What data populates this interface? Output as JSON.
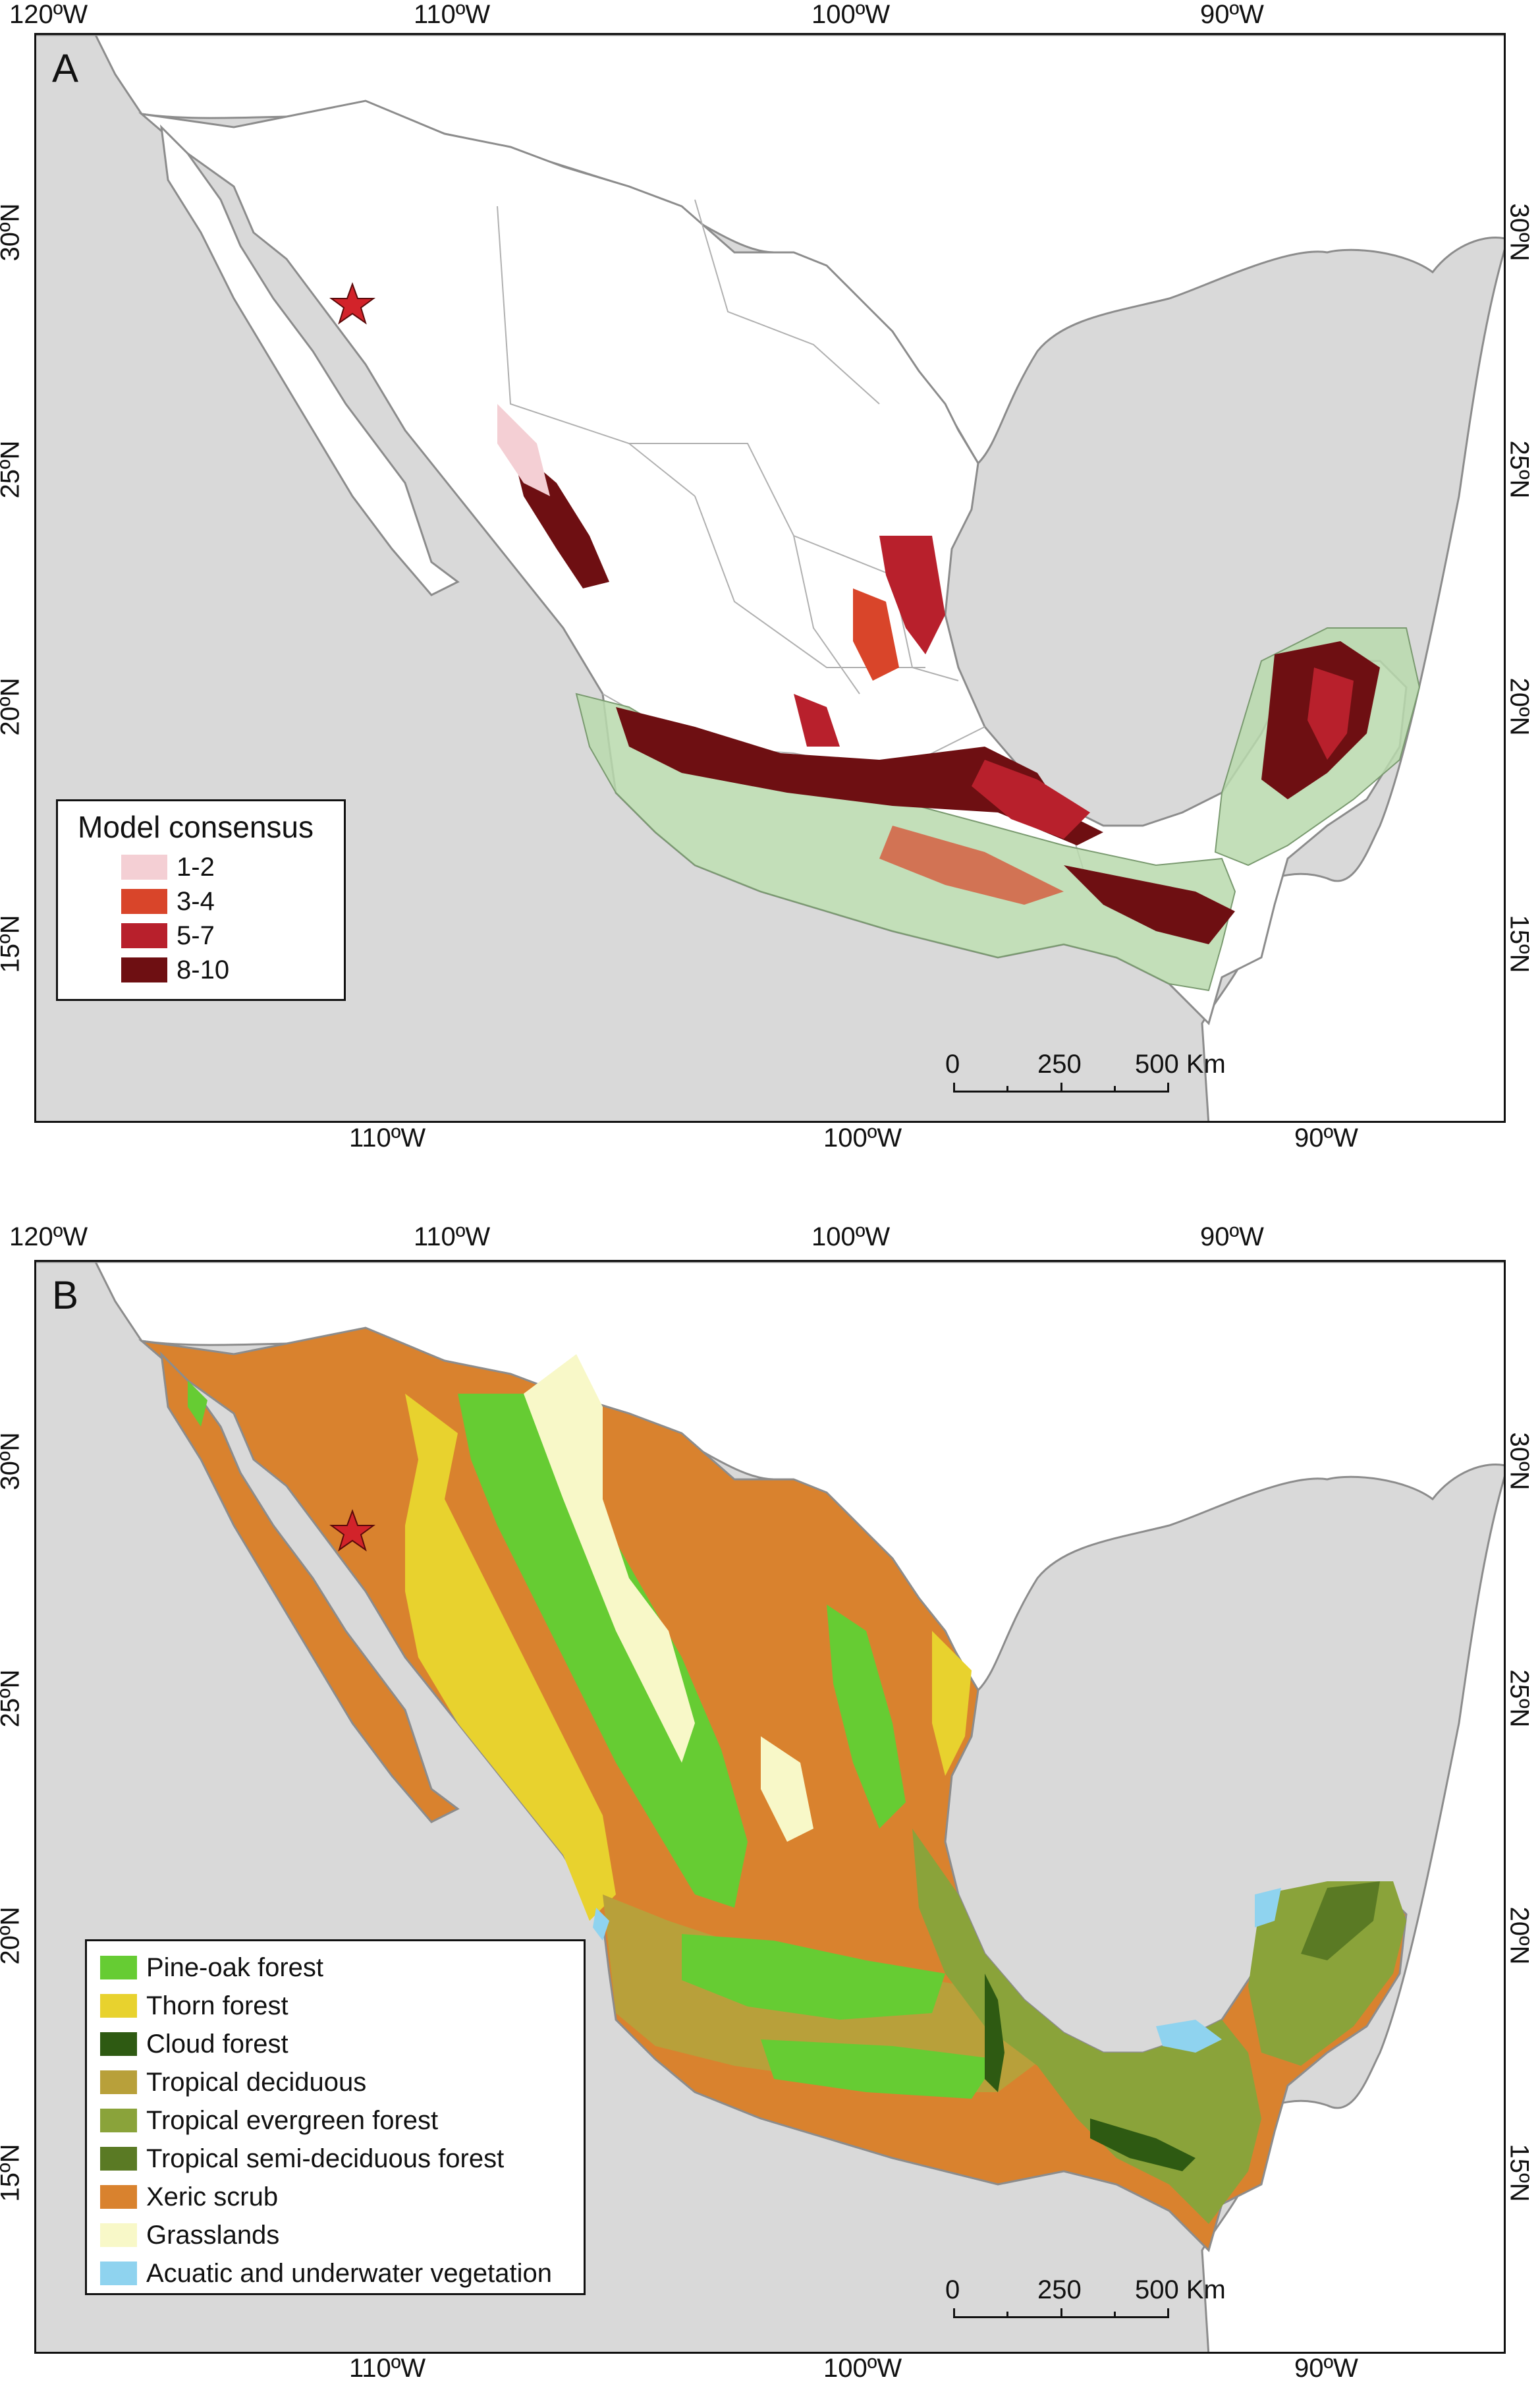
{
  "panel_a": {
    "letter": "A",
    "legend": {
      "title": "Model consensus",
      "items": [
        {
          "label": "1-2",
          "color": "#f4cfd4"
        },
        {
          "label": "3-4",
          "color": "#d9452a"
        },
        {
          "label": "5-7",
          "color": "#b8202c"
        },
        {
          "label": "8-10",
          "color": "#6e0f12"
        }
      ]
    }
  },
  "panel_b": {
    "letter": "B",
    "legend": {
      "items": [
        {
          "label": "Pine-oak forest",
          "color": "#66cc33"
        },
        {
          "label": "Thorn forest",
          "color": "#e8d22e"
        },
        {
          "label": "Cloud forest",
          "color": "#2e5a12"
        },
        {
          "label": "Tropical deciduous",
          "color": "#b8a03a"
        },
        {
          "label": "Tropical evergreen forest",
          "color": "#8aa33a"
        },
        {
          "label": "Tropical semi-deciduous forest",
          "color": "#5a7a24"
        },
        {
          "label": "Xeric scrub",
          "color": "#d9822e"
        },
        {
          "label": "Grasslands",
          "color": "#f8f8c8"
        },
        {
          "label": "Acuatic and underwater vegetation",
          "color": "#8fd3ef"
        }
      ]
    }
  },
  "axes": {
    "lon_top": [
      "120ºW",
      "110ºW",
      "100ºW",
      "90ºW"
    ],
    "lon_bottom": [
      "110ºW",
      "100ºW",
      "90ºW"
    ],
    "lat": [
      "30ºN",
      "25ºN",
      "20ºN",
      "15ºN"
    ]
  },
  "scale_bar": {
    "labels": [
      "0",
      "250",
      "500 Km"
    ]
  },
  "colors": {
    "ocean": "#d9d9d9",
    "land": "#ffffff",
    "border": "#8c8c8c",
    "highlight_region": "#b9d9ad",
    "star": "#d2232a"
  }
}
